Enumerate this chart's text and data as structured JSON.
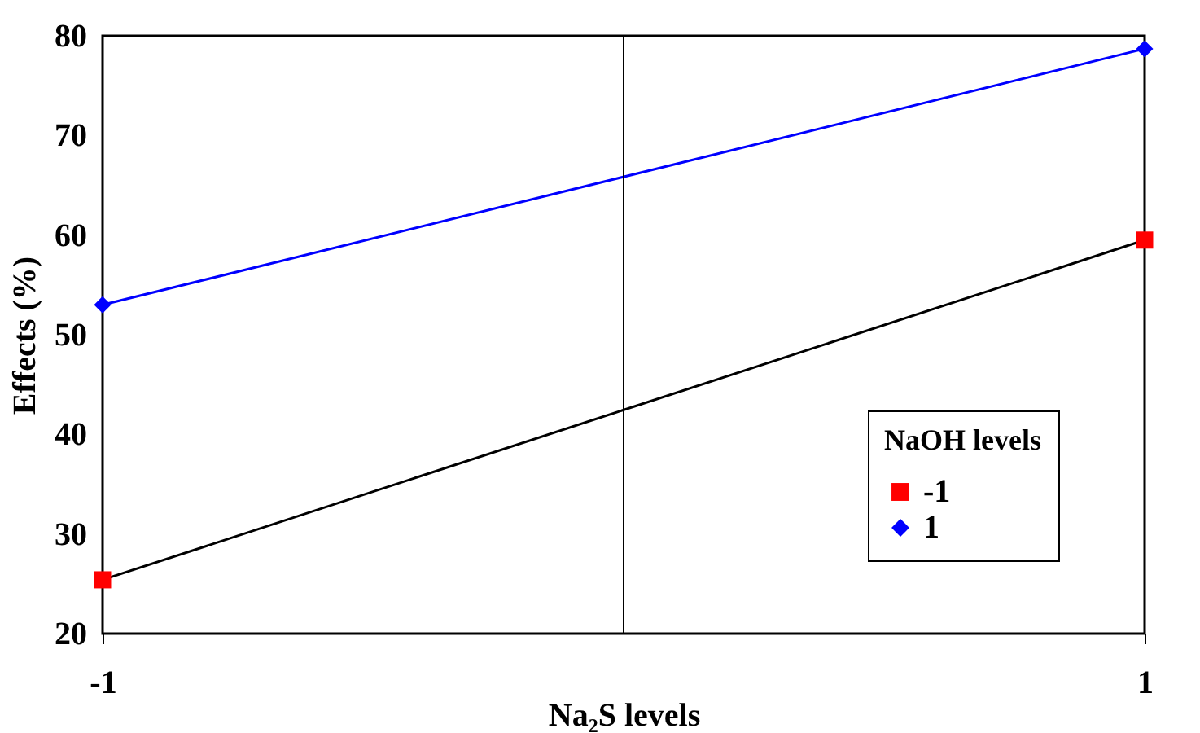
{
  "chart_data": {
    "type": "line",
    "xlabel": "Na₂S levels",
    "ylabel": "Effects (%)",
    "legend_title": "NaOH levels",
    "x": [
      -1,
      1
    ],
    "xlim": [
      -1,
      1
    ],
    "xticks": [
      -1,
      1
    ],
    "ylim": [
      20,
      80
    ],
    "yticks": [
      20,
      30,
      40,
      50,
      60,
      70,
      80
    ],
    "series": [
      {
        "name": "-1",
        "color": "#000000",
        "colors": [
          "#ff0000",
          "#ff0000"
        ],
        "marker": "square",
        "values": [
          25.4,
          59.5
        ]
      },
      {
        "name": "1",
        "color": "#0000ff",
        "colors": [
          "#0000ff",
          "#0000ff"
        ],
        "marker": "diamond",
        "values": [
          53.0,
          78.7
        ]
      }
    ],
    "ref_lines": [
      {
        "axis": "x",
        "value": 0,
        "color": "#000000"
      }
    ],
    "legend": "right",
    "grid": false
  }
}
